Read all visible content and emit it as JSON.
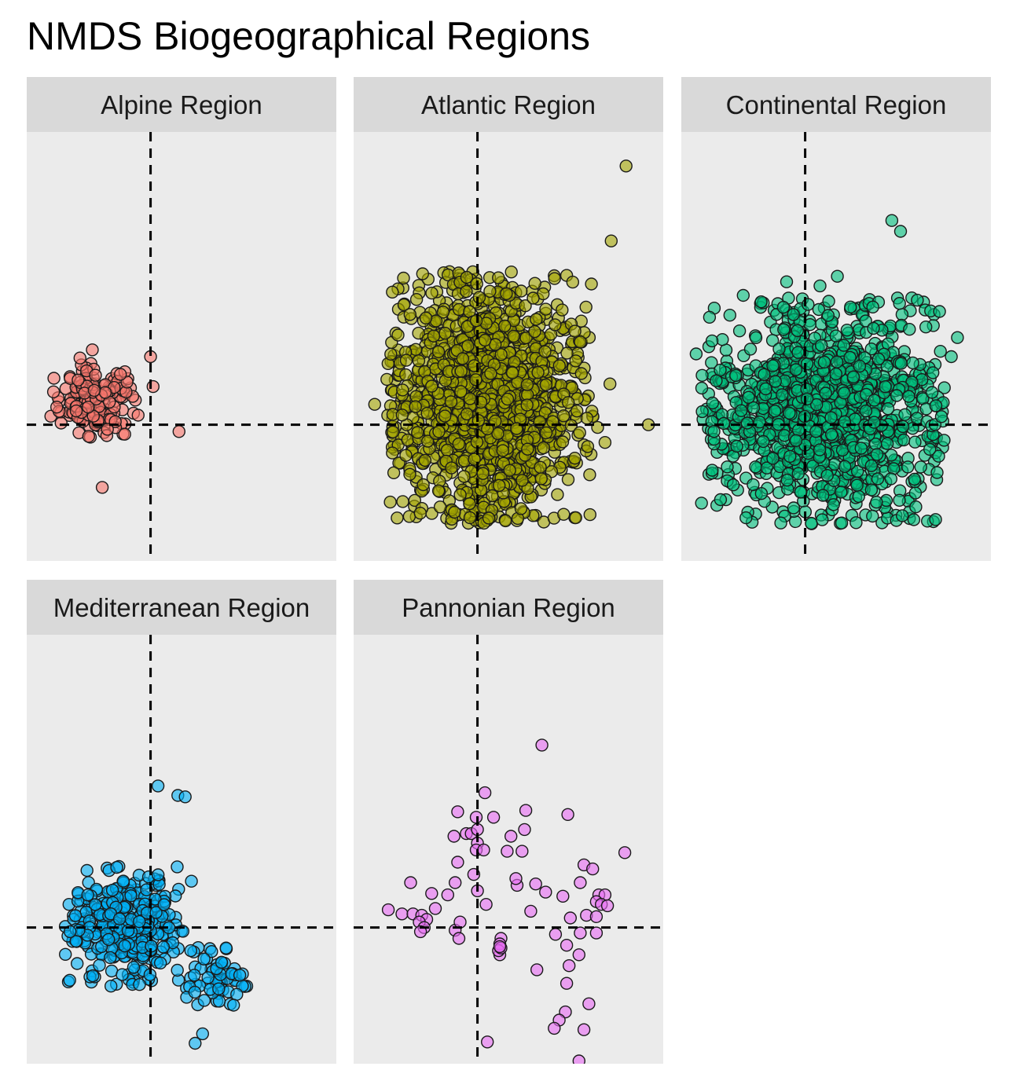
{
  "chart_data": {
    "type": "scatter",
    "title": "NMDS Biogeographical Regions",
    "xlabel": "",
    "ylabel": "",
    "axis_ticks": "none",
    "reference_lines": {
      "x": 0,
      "y": 0,
      "style": "dashed",
      "color": "#000000"
    },
    "xlim": [
      -1.0,
      1.5
    ],
    "ylim": [
      -1.0,
      2.15
    ],
    "point_opacity": 0.6,
    "facets": [
      {
        "name": "Alpine Region",
        "color": "#F8766D",
        "cluster": {
          "n": 160,
          "center": [
            -0.45,
            0.18
          ],
          "spread": [
            0.17,
            0.13
          ]
        },
        "outliers": [
          [
            -0.1,
            0.07
          ],
          [
            0.0,
            0.5
          ],
          [
            0.02,
            0.28
          ],
          [
            0.23,
            -0.05
          ],
          [
            -0.39,
            -0.46
          ],
          [
            -0.57,
            0.49
          ],
          [
            -0.47,
            0.55
          ]
        ]
      },
      {
        "name": "Atlantic Region",
        "color": "#A3A500",
        "cluster": {
          "n": 1500,
          "center": [
            0.1,
            0.2
          ],
          "spread": [
            0.38,
            0.42
          ]
        },
        "outliers": [
          [
            1.2,
            1.9
          ],
          [
            1.08,
            1.35
          ],
          [
            1.38,
            0.0
          ],
          [
            1.03,
            -0.13
          ],
          [
            0.97,
            -0.02
          ],
          [
            1.07,
            0.3
          ],
          [
            0.1,
            0.98
          ],
          [
            0.45,
            0.93
          ],
          [
            -0.83,
            0.15
          ]
        ]
      },
      {
        "name": "Continental Region",
        "color": "#00BF7D",
        "cluster": {
          "n": 1200,
          "center": [
            0.15,
            0.1
          ],
          "spread": [
            0.45,
            0.38
          ]
        },
        "outliers": [
          [
            0.7,
            1.5
          ],
          [
            0.77,
            1.42
          ],
          [
            1.23,
            0.64
          ],
          [
            1.18,
            0.5
          ],
          [
            1.1,
            0.06
          ],
          [
            -0.88,
            0.52
          ],
          [
            -0.5,
            0.95
          ],
          [
            -0.15,
            1.05
          ],
          [
            0.26,
            1.09
          ],
          [
            0.12,
            1.02
          ]
        ]
      },
      {
        "name": "Mediterranean Region",
        "color": "#00B0F6",
        "cluster": {
          "n": 320,
          "center": [
            -0.22,
            0.02
          ],
          "spread": [
            0.22,
            0.2
          ]
        },
        "cluster2": {
          "n": 60,
          "center": [
            0.5,
            -0.35
          ],
          "spread": [
            0.13,
            0.1
          ]
        },
        "outliers": [
          [
            0.06,
            1.04
          ],
          [
            0.22,
            0.97
          ],
          [
            0.28,
            0.96
          ],
          [
            0.33,
            0.34
          ],
          [
            -0.32,
            -0.43
          ],
          [
            0.67,
            -0.57
          ],
          [
            0.36,
            -0.85
          ],
          [
            0.42,
            -0.78
          ],
          [
            -0.65,
            -0.03
          ],
          [
            0.61,
            -0.15
          ],
          [
            0.72,
            -0.35
          ]
        ]
      },
      {
        "name": "Pannonian Region",
        "color": "#E76BF3",
        "cluster": {
          "n": 0,
          "center": [
            0,
            0
          ],
          "spread": [
            0,
            0
          ]
        },
        "outliers": [
          [
            0.52,
            1.34
          ],
          [
            0.06,
            0.99
          ],
          [
            0.13,
            0.81
          ],
          [
            -0.16,
            0.85
          ],
          [
            -0.01,
            0.81
          ],
          [
            0.39,
            0.86
          ],
          [
            0.73,
            0.83
          ],
          [
            0.38,
            0.72
          ],
          [
            -0.19,
            0.67
          ],
          [
            -0.09,
            0.69
          ],
          [
            -0.05,
            0.69
          ],
          [
            0.0,
            0.72
          ],
          [
            0.0,
            0.62
          ],
          [
            -0.01,
            0.57
          ],
          [
            0.05,
            0.57
          ],
          [
            0.27,
            0.67
          ],
          [
            0.36,
            0.56
          ],
          [
            0.24,
            0.56
          ],
          [
            1.19,
            0.55
          ],
          [
            -0.16,
            0.48
          ],
          [
            -0.03,
            0.39
          ],
          [
            0.0,
            0.27
          ],
          [
            0.86,
            0.46
          ],
          [
            0.93,
            0.43
          ],
          [
            0.83,
            0.33
          ],
          [
            -0.54,
            0.33
          ],
          [
            -0.37,
            0.25
          ],
          [
            -0.24,
            0.24
          ],
          [
            -0.34,
            0.14
          ],
          [
            0.69,
            0.23
          ],
          [
            0.98,
            0.24
          ],
          [
            1.03,
            0.24
          ],
          [
            0.96,
            0.19
          ],
          [
            1.0,
            0.17
          ],
          [
            1.05,
            0.16
          ],
          [
            -0.72,
            0.13
          ],
          [
            -0.61,
            0.1
          ],
          [
            -0.52,
            0.1
          ],
          [
            0.43,
            0.12
          ],
          [
            0.88,
            0.09
          ],
          [
            0.75,
            0.07
          ],
          [
            0.96,
            0.08
          ],
          [
            -0.45,
            0.09
          ],
          [
            -0.41,
            0.06
          ],
          [
            -0.47,
            0.04
          ],
          [
            -0.43,
            0.0
          ],
          [
            -0.46,
            -0.03
          ],
          [
            0.72,
            -0.13
          ],
          [
            0.63,
            -0.05
          ],
          [
            0.83,
            -0.04
          ],
          [
            0.96,
            -0.04
          ],
          [
            0.82,
            -0.2
          ],
          [
            0.48,
            -0.31
          ],
          [
            0.9,
            -0.56
          ],
          [
            0.71,
            -0.62
          ],
          [
            0.66,
            -0.68
          ],
          [
            0.86,
            -0.75
          ],
          [
            0.62,
            -0.74
          ],
          [
            0.18,
            -0.2
          ],
          [
            0.74,
            -0.28
          ],
          [
            0.19,
            -0.08
          ],
          [
            0.18,
            -0.12
          ],
          [
            -0.18,
            -0.02
          ],
          [
            -0.15,
            -0.08
          ],
          [
            -0.14,
            0.04
          ],
          [
            0.47,
            0.32
          ],
          [
            0.55,
            0.26
          ],
          [
            0.32,
            0.31
          ],
          [
            0.31,
            0.36
          ],
          [
            0.17,
            -0.17
          ],
          [
            0.19,
            -0.15
          ],
          [
            0.18,
            -0.14
          ],
          [
            0.07,
            0.17
          ],
          [
            0.72,
            -0.41
          ],
          [
            -0.18,
            0.33
          ],
          [
            0.08,
            -0.84
          ],
          [
            0.82,
            -0.98
          ]
        ]
      }
    ]
  }
}
